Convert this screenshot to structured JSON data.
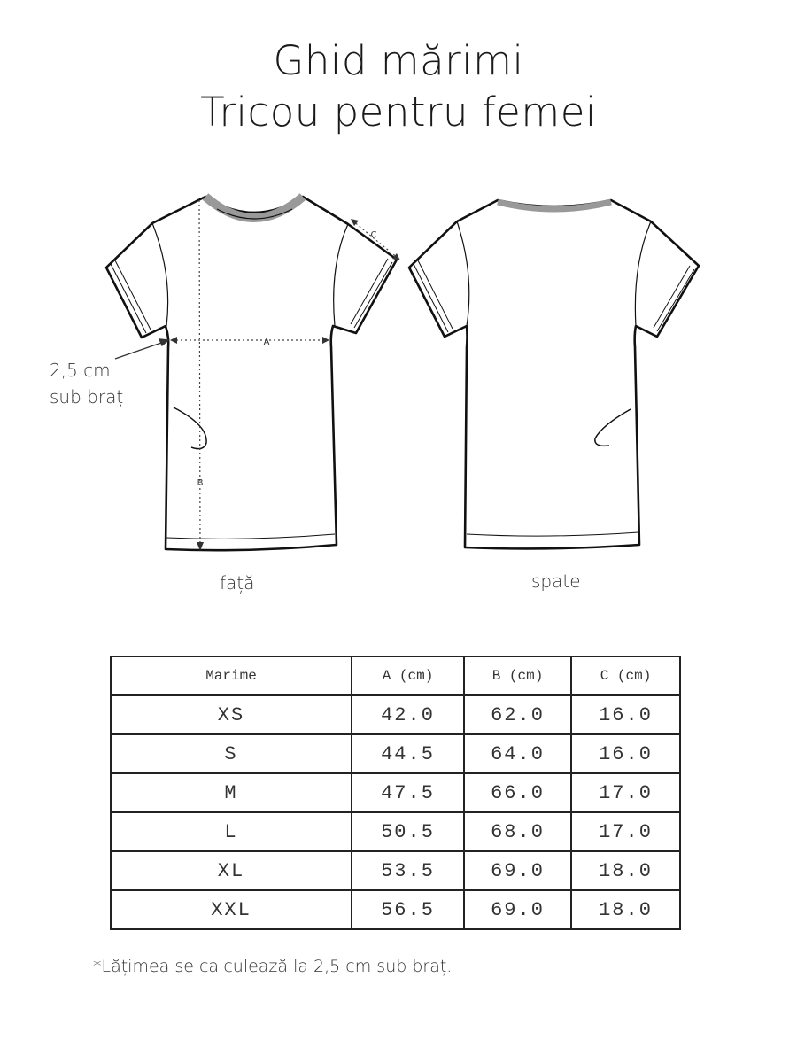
{
  "title_line1": "Ghid mărimi",
  "title_line2": "Tricou pentru femei",
  "diagram": {
    "marker_a": "A",
    "marker_b": "B",
    "marker_c": "C",
    "underarm_note_line1": "2,5 cm",
    "underarm_note_line2": "sub braț",
    "front_label": "față",
    "back_label": "spate"
  },
  "table": {
    "headers": [
      "Marime",
      "A (cm)",
      "B (cm)",
      "C (cm)"
    ],
    "rows": [
      [
        "XS",
        "42.0",
        "62.0",
        "16.0"
      ],
      [
        "S",
        "44.5",
        "64.0",
        "16.0"
      ],
      [
        "M",
        "47.5",
        "66.0",
        "17.0"
      ],
      [
        "L",
        "50.5",
        "68.0",
        "17.0"
      ],
      [
        "XL",
        "53.5",
        "69.0",
        "18.0"
      ],
      [
        "XXL",
        "56.5",
        "69.0",
        "18.0"
      ]
    ]
  },
  "footnote": "*Lățimea se calculează la 2,5 cm sub braț."
}
